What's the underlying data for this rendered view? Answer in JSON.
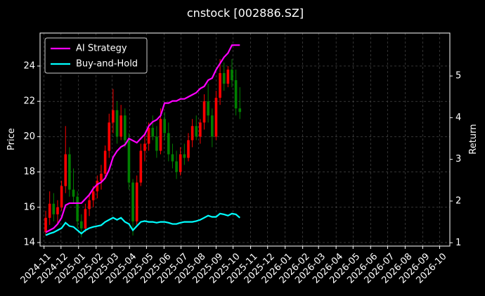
{
  "chart_data": {
    "type": "candlestick",
    "title": "cnstock [002886.SZ]",
    "y_label": "Price",
    "y2_label": "Return",
    "grid": true,
    "legend": "upper left",
    "up_color": "#ff0000",
    "down_color": "#008000",
    "xlim": [
      "2024-10-25",
      "2026-10-19"
    ],
    "xticks": [
      {
        "value": "2024-11-01",
        "label": "2024-11"
      },
      {
        "value": "2024-12-01",
        "label": "2024-12"
      },
      {
        "value": "2025-01-01",
        "label": "2025-01"
      },
      {
        "value": "2025-02-01",
        "label": "2025-02"
      },
      {
        "value": "2025-03-01",
        "label": "2025-03"
      },
      {
        "value": "2025-04-01",
        "label": "2025-04"
      },
      {
        "value": "2025-05-01",
        "label": "2025-05"
      },
      {
        "value": "2025-06-01",
        "label": "2025-06"
      },
      {
        "value": "2025-07-01",
        "label": "2025-07"
      },
      {
        "value": "2025-08-01",
        "label": "2025-08"
      },
      {
        "value": "2025-09-01",
        "label": "2025-09"
      },
      {
        "value": "2025-10-01",
        "label": "2025-10"
      },
      {
        "value": "2025-11-01",
        "label": "2025-11"
      },
      {
        "value": "2025-12-01",
        "label": "2025-12"
      },
      {
        "value": "2026-01-01",
        "label": "2026-01"
      },
      {
        "value": "2026-02-01",
        "label": "2026-02"
      },
      {
        "value": "2026-03-01",
        "label": "2026-03"
      },
      {
        "value": "2026-04-01",
        "label": "2026-04"
      },
      {
        "value": "2026-05-01",
        "label": "2026-05"
      },
      {
        "value": "2026-06-01",
        "label": "2026-06"
      },
      {
        "value": "2026-07-01",
        "label": "2026-07"
      },
      {
        "value": "2026-08-01",
        "label": "2026-08"
      },
      {
        "value": "2026-09-01",
        "label": "2026-09"
      },
      {
        "value": "2026-10-01",
        "label": "2026-10"
      }
    ],
    "ylim": [
      13.8,
      25.87
    ],
    "yticks": [
      14,
      16,
      18,
      20,
      22,
      24
    ],
    "y2lim": [
      0.92,
      6.03
    ],
    "y2ticks": [
      1,
      2,
      3,
      4,
      5
    ],
    "x": [
      "2024-11-04",
      "2024-11-11",
      "2024-11-18",
      "2024-11-25",
      "2024-12-02",
      "2024-12-09",
      "2024-12-16",
      "2024-12-23",
      "2024-12-30",
      "2025-01-06",
      "2025-01-13",
      "2025-01-20",
      "2025-01-27",
      "2025-02-03",
      "2025-02-10",
      "2025-02-17",
      "2025-02-24",
      "2025-03-03",
      "2025-03-10",
      "2025-03-17",
      "2025-03-24",
      "2025-03-31",
      "2025-04-07",
      "2025-04-14",
      "2025-04-21",
      "2025-04-28",
      "2025-05-05",
      "2025-05-12",
      "2025-05-19",
      "2025-05-26",
      "2025-06-02",
      "2025-06-09",
      "2025-06-16",
      "2025-06-23",
      "2025-06-30",
      "2025-07-07",
      "2025-07-14",
      "2025-07-21",
      "2025-07-28",
      "2025-08-04",
      "2025-08-11",
      "2025-08-18",
      "2025-08-25",
      "2025-09-01",
      "2025-09-08",
      "2025-09-15",
      "2025-09-22",
      "2025-09-29",
      "2025-10-06",
      "2025-10-13"
    ],
    "open": [
      14.6,
      15.4,
      16.2,
      15.6,
      16.0,
      17.2,
      19.0,
      17.0,
      16.6,
      15.2,
      14.8,
      15.9,
      16.4,
      16.9,
      17.5,
      17.9,
      19.2,
      20.8,
      21.5,
      20.0,
      21.2,
      19.8,
      17.4,
      15.2,
      17.4,
      19.2,
      19.6,
      20.5,
      20.0,
      19.2,
      21.0,
      20.2,
      19.0,
      18.6,
      18.0,
      19.0,
      18.8,
      19.8,
      20.6,
      20.0,
      20.8,
      22.0,
      21.2,
      20.0,
      22.2,
      23.6,
      23.0,
      23.8,
      23.2,
      21.6
    ],
    "high": [
      15.8,
      16.9,
      16.8,
      16.4,
      17.5,
      20.6,
      19.4,
      18.2,
      16.9,
      15.6,
      16.2,
      16.8,
      17.2,
      17.8,
      18.4,
      19.5,
      21.3,
      22.7,
      22.0,
      21.8,
      21.6,
      20.2,
      17.6,
      17.8,
      19.6,
      20.2,
      20.8,
      21.2,
      20.6,
      21.6,
      21.4,
      20.8,
      19.6,
      19.2,
      19.4,
      19.6,
      20.2,
      21.0,
      21.2,
      21.0,
      22.4,
      23.0,
      21.6,
      22.6,
      24.4,
      24.2,
      24.0,
      24.4,
      23.8,
      22.8
    ],
    "low": [
      14.4,
      15.0,
      15.2,
      15.0,
      15.8,
      16.8,
      16.6,
      16.2,
      14.8,
      14.3,
      14.6,
      15.5,
      16.0,
      16.5,
      17.0,
      17.6,
      18.8,
      20.2,
      19.6,
      19.8,
      19.4,
      17.0,
      14.4,
      15.0,
      17.2,
      18.6,
      19.2,
      19.8,
      18.8,
      19.0,
      19.8,
      18.6,
      18.2,
      17.6,
      17.8,
      18.4,
      18.6,
      19.4,
      19.8,
      19.6,
      20.4,
      20.8,
      19.4,
      19.8,
      21.8,
      22.6,
      22.8,
      22.8,
      21.2,
      21.0
    ],
    "close": [
      15.4,
      16.2,
      15.6,
      16.0,
      17.2,
      19.0,
      17.0,
      16.6,
      15.2,
      14.8,
      15.9,
      16.4,
      16.9,
      17.5,
      17.9,
      19.2,
      20.8,
      21.5,
      20.0,
      21.2,
      19.8,
      17.4,
      15.2,
      17.4,
      19.2,
      19.6,
      20.5,
      20.0,
      19.2,
      21.0,
      20.2,
      19.0,
      18.6,
      18.0,
      19.0,
      18.8,
      19.8,
      20.6,
      20.0,
      20.8,
      22.0,
      21.2,
      20.0,
      22.2,
      23.6,
      23.0,
      23.8,
      23.2,
      21.6,
      21.4
    ],
    "series": [
      {
        "name": "AI Strategy",
        "color": "#ff00ff",
        "axis": "y2",
        "values": [
          1.25,
          1.3,
          1.35,
          1.45,
          1.6,
          1.9,
          1.95,
          1.95,
          1.95,
          1.95,
          2.05,
          2.15,
          2.3,
          2.4,
          2.45,
          2.55,
          2.75,
          3.05,
          3.2,
          3.3,
          3.35,
          3.5,
          3.45,
          3.4,
          3.5,
          3.6,
          3.8,
          3.9,
          3.95,
          4.05,
          4.35,
          4.35,
          4.4,
          4.4,
          4.45,
          4.45,
          4.5,
          4.55,
          4.6,
          4.7,
          4.75,
          4.9,
          4.95,
          5.15,
          5.3,
          5.45,
          5.55,
          5.74,
          5.74,
          5.74
        ]
      },
      {
        "name": "Buy-and-Hold",
        "color": "#00ffff",
        "axis": "y2",
        "values": [
          1.18,
          1.22,
          1.25,
          1.3,
          1.35,
          1.48,
          1.4,
          1.38,
          1.3,
          1.22,
          1.3,
          1.35,
          1.38,
          1.4,
          1.42,
          1.5,
          1.55,
          1.6,
          1.55,
          1.6,
          1.5,
          1.45,
          1.3,
          1.4,
          1.5,
          1.52,
          1.5,
          1.5,
          1.48,
          1.5,
          1.5,
          1.48,
          1.45,
          1.45,
          1.48,
          1.5,
          1.5,
          1.5,
          1.52,
          1.55,
          1.6,
          1.65,
          1.62,
          1.62,
          1.7,
          1.68,
          1.65,
          1.7,
          1.68,
          1.6
        ]
      }
    ]
  }
}
